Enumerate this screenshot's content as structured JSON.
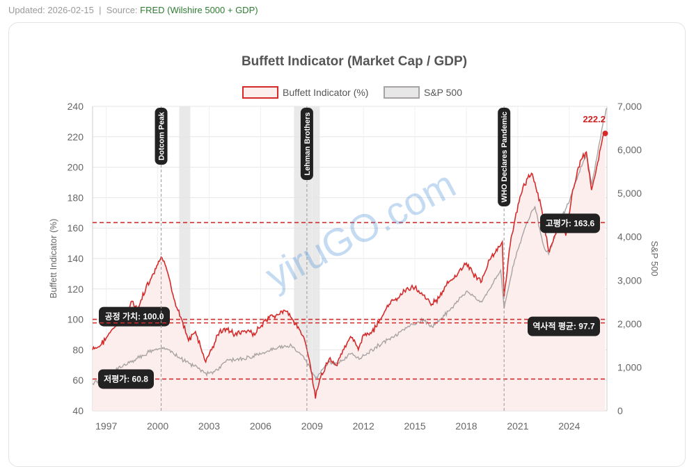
{
  "meta": {
    "updated_label": "Updated: 2026-02-15",
    "separator": "|",
    "source_label": "Source:",
    "source_value": "FRED (Wilshire 5000 + GDP)"
  },
  "watermark": "yiruGO.com",
  "colors": {
    "buffett": "#d42a2a",
    "buffett_fill": "#fdeeee",
    "sp500": "#a8a3a3",
    "ref_line": "#d42a2a",
    "recession": "#e9e9e9"
  },
  "chart_data": {
    "type": "line",
    "title": "Buffett Indicator (Market Cap / GDP)",
    "ylabel": "Buffett Indicator (%)",
    "y2label": "S&P 500",
    "xlim": [
      1996.2,
      2026.2
    ],
    "ylim": [
      40,
      240
    ],
    "y2lim": [
      0,
      7000
    ],
    "x_ticks": [
      "1997",
      "2000",
      "2003",
      "2006",
      "2009",
      "2012",
      "2015",
      "2018",
      "2021",
      "2024"
    ],
    "y_ticks": [
      "40",
      "60",
      "80",
      "100",
      "120",
      "140",
      "160",
      "180",
      "200",
      "220",
      "240"
    ],
    "y2_ticks": [
      "0",
      "1,000",
      "2,000",
      "3,000",
      "4,000",
      "5,000",
      "6,000",
      "7,000"
    ],
    "legend": [
      "Buffett Indicator (%)",
      "S&P 500"
    ],
    "series": [
      {
        "name": "Buffett Indicator (%)",
        "x": [
          1996.2,
          1996.6,
          1997.0,
          1997.5,
          1998.0,
          1998.5,
          1998.8,
          1999.3,
          1999.8,
          2000.0,
          2000.2,
          2000.6,
          2001.0,
          2001.4,
          2001.8,
          2002.2,
          2002.6,
          2002.8,
          2003.2,
          2003.6,
          2004.0,
          2004.5,
          2005.0,
          2005.6,
          2006.0,
          2006.5,
          2007.0,
          2007.4,
          2007.8,
          2008.2,
          2008.6,
          2008.9,
          2009.05,
          2009.2,
          2009.5,
          2010.0,
          2010.4,
          2010.8,
          2011.3,
          2011.7,
          2012.0,
          2012.5,
          2013.0,
          2013.5,
          2014.0,
          2014.5,
          2015.0,
          2015.5,
          2016.0,
          2016.4,
          2017.0,
          2017.5,
          2018.0,
          2018.4,
          2018.9,
          2019.3,
          2019.8,
          2020.1,
          2020.2,
          2020.5,
          2020.9,
          2021.3,
          2021.8,
          2022.0,
          2022.4,
          2022.8,
          2023.0,
          2023.5,
          2023.8,
          2024.2,
          2024.7,
          2025.0,
          2025.3,
          2025.6,
          2026.0,
          2026.1
        ],
        "values": [
          80,
          82,
          88,
          95,
          103,
          112,
          106,
          120,
          130,
          136,
          141,
          130,
          112,
          100,
          86,
          92,
          78,
          72,
          82,
          92,
          94,
          90,
          92,
          91,
          95,
          101,
          103,
          106,
          101,
          95,
          85,
          70,
          58,
          48,
          62,
          74,
          70,
          80,
          88,
          80,
          90,
          92,
          100,
          110,
          114,
          120,
          121,
          116,
          110,
          114,
          125,
          130,
          137,
          130,
          125,
          139,
          145,
          151,
          115,
          145,
          170,
          187,
          196,
          190,
          172,
          145,
          150,
          165,
          155,
          185,
          205,
          210,
          185,
          200,
          222.2,
          222
        ]
      },
      {
        "name": "S&P 500",
        "x": [
          1996.2,
          1997.0,
          1998.0,
          1998.8,
          1999.5,
          2000.2,
          2000.7,
          2001.3,
          2001.8,
          2002.3,
          2002.8,
          2003.2,
          2004.0,
          2005.0,
          2006.0,
          2007.0,
          2007.8,
          2008.5,
          2009.2,
          2010.0,
          2010.6,
          2011.3,
          2011.8,
          2012.5,
          2013.5,
          2014.5,
          2015.5,
          2016.0,
          2017.0,
          2018.0,
          2018.9,
          2019.5,
          2020.0,
          2020.2,
          2020.7,
          2021.0,
          2021.5,
          2022.0,
          2022.5,
          2022.8,
          2023.5,
          2024.0,
          2024.5,
          2025.0,
          2025.3,
          2025.6,
          2026.0,
          2026.2
        ],
        "values": [
          620,
          780,
          1050,
          1200,
          1350,
          1420,
          1400,
          1200,
          1100,
          1000,
          870,
          850,
          1150,
          1200,
          1300,
          1450,
          1500,
          1250,
          760,
          1120,
          1100,
          1320,
          1200,
          1400,
          1650,
          1900,
          2100,
          1930,
          2300,
          2750,
          2500,
          2900,
          3230,
          2350,
          3300,
          3700,
          4300,
          4700,
          3800,
          3600,
          4400,
          4800,
          5400,
          5900,
          5200,
          5800,
          6700,
          6950
        ]
      }
    ],
    "reference_lines": [
      {
        "label": "고평가: 163.6",
        "value": 163.6
      },
      {
        "label": "공정 가치: 100.0",
        "value": 100.0
      },
      {
        "label": "역사적 평균: 97.7",
        "value": 97.7
      },
      {
        "label": "저평가: 60.8",
        "value": 60.8
      }
    ],
    "events": [
      {
        "label": "Dotcom Peak",
        "x": 2000.2
      },
      {
        "label": "Lehman Brothers",
        "x": 2008.7
      },
      {
        "label": "WHO Declares Pandemic",
        "x": 2020.2
      }
    ],
    "recessions": [
      [
        2001.25,
        2001.9
      ],
      [
        2007.95,
        2009.45
      ]
    ],
    "end_label": "222.2"
  }
}
